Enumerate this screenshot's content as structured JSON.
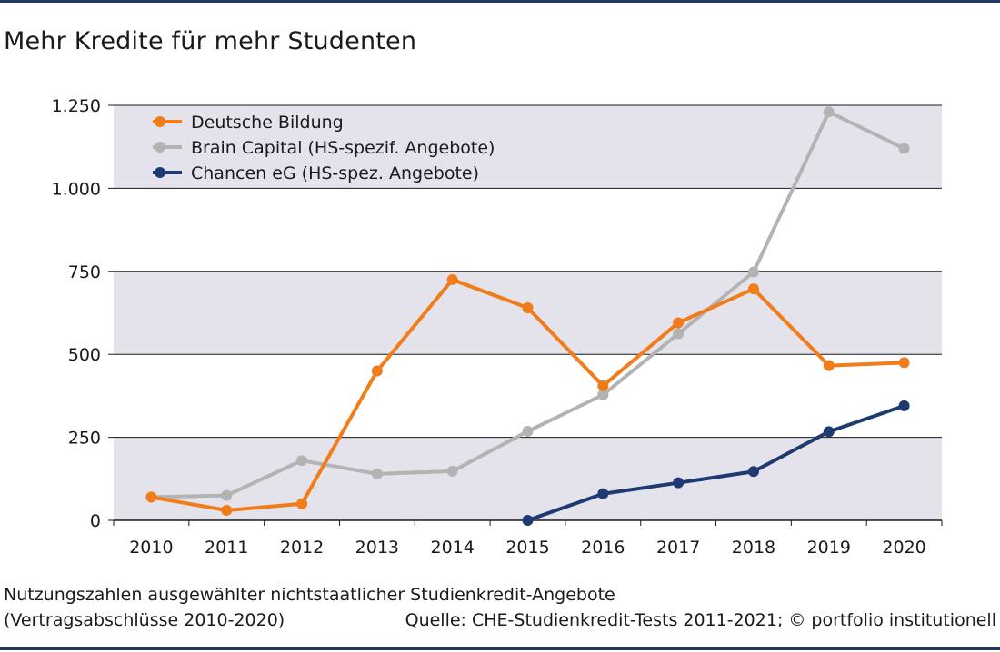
{
  "title": "Mehr Kredite für mehr Studenten",
  "footnote": {
    "line1": "Nutzungszahlen ausgewählter nichtstaatlicher Studienkredit-Angebote",
    "line2": "(Vertragsabschlüsse 2010-2020)",
    "source": "Quelle: CHE-Studienkredit-Tests 2011-2021; © portfolio institutionell"
  },
  "colors": {
    "band": "#e4e3ec",
    "gridline": "#1a1a1a",
    "rule": "#1f3864"
  },
  "chart_data": {
    "type": "line",
    "x": [
      "2010",
      "2011",
      "2012",
      "2013",
      "2014",
      "2015",
      "2016",
      "2017",
      "2018",
      "2019",
      "2020"
    ],
    "ylim": [
      0,
      1250
    ],
    "yticks": [
      0,
      250,
      500,
      750,
      1000,
      1250
    ],
    "ytick_labels": [
      "0",
      "250",
      "500",
      "750",
      "1.000",
      "1.250"
    ],
    "grid": true,
    "legend_position": "top-left",
    "xlabel": "",
    "ylabel": "",
    "series": [
      {
        "name": "Deutsche Bildung",
        "color": "#f07c1a",
        "values": [
          70,
          30,
          50,
          450,
          725,
          640,
          405,
          595,
          697,
          466,
          475
        ]
      },
      {
        "name": "Brain Capital (HS-spezif. Angebote)",
        "color": "#b3b3b3",
        "values": [
          70,
          75,
          180,
          140,
          148,
          268,
          378,
          562,
          748,
          1230,
          1120
        ]
      },
      {
        "name": "Chancen eG (HS-spez. Angebote)",
        "color": "#1f3a73",
        "values": [
          null,
          null,
          null,
          null,
          null,
          0,
          80,
          113,
          147,
          267,
          345
        ]
      }
    ]
  }
}
